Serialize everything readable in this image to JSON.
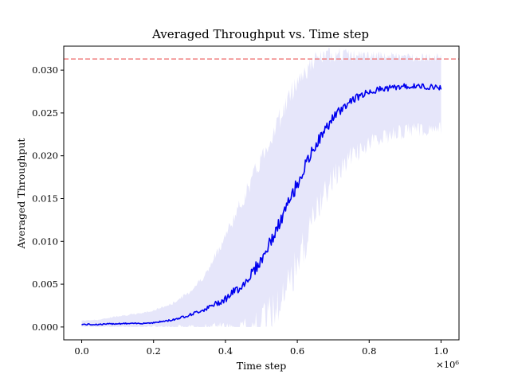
{
  "chart_data": {
    "type": "line",
    "title": "Averaged Throughput vs. Time step",
    "xlabel": "Time step",
    "ylabel": "Averaged Throughput",
    "x_multiplier_label": "×10⁶",
    "xlim": [
      -0.05,
      1.05
    ],
    "ylim": [
      -0.0015,
      0.0328
    ],
    "x_ticks": [
      0.0,
      0.2,
      0.4,
      0.6,
      0.8,
      1.0
    ],
    "x_tick_labels": [
      "0.0",
      "0.2",
      "0.4",
      "0.6",
      "0.8",
      "1.0"
    ],
    "y_ticks": [
      0.0,
      0.005,
      0.01,
      0.015,
      0.02,
      0.025,
      0.03
    ],
    "y_tick_labels": [
      "0.000",
      "0.005",
      "0.010",
      "0.015",
      "0.020",
      "0.025",
      "0.030"
    ],
    "grid": false,
    "reference_line": {
      "y": 0.0313,
      "style": "dashed"
    },
    "series": [
      {
        "color": "#0000ee",
        "x": [
          0.0,
          0.05,
          0.1,
          0.15,
          0.2,
          0.25,
          0.3,
          0.35,
          0.4,
          0.45,
          0.5,
          0.55,
          0.6,
          0.65,
          0.7,
          0.75,
          0.8,
          0.85,
          0.9,
          0.95,
          1.0
        ],
        "mean": [
          0.0003,
          0.0003,
          0.0004,
          0.0004,
          0.0005,
          0.0008,
          0.0014,
          0.0022,
          0.0033,
          0.005,
          0.0078,
          0.012,
          0.0168,
          0.0212,
          0.0245,
          0.0265,
          0.0275,
          0.0279,
          0.0281,
          0.0281,
          0.028
        ],
        "band_low": [
          0.0001,
          0.0001,
          0.0001,
          0.0001,
          0.0002,
          0.0002,
          0.0003,
          0.0004,
          0.0007,
          0.0012,
          0.0025,
          0.005,
          0.0095,
          0.015,
          0.019,
          0.0212,
          0.0225,
          0.0232,
          0.0238,
          0.024,
          0.024
        ],
        "band_high": [
          0.0007,
          0.0008,
          0.0012,
          0.0014,
          0.0018,
          0.0025,
          0.0038,
          0.006,
          0.01,
          0.014,
          0.0185,
          0.023,
          0.0275,
          0.03,
          0.031,
          0.031,
          0.031,
          0.031,
          0.031,
          0.031,
          0.031
        ]
      }
    ],
    "colors": {
      "line": "#0000ee",
      "band": "#e6e6fa",
      "reference": "#f08080"
    }
  }
}
